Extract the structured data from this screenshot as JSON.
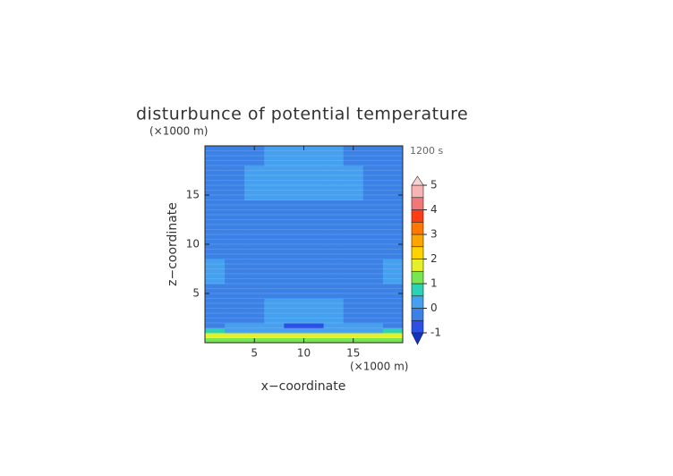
{
  "chart_data": {
    "type": "contour",
    "title": "disturbunce of potential temperature",
    "time_label": "1200 s",
    "xlabel": "x−coordinate",
    "ylabel": "z−coordinate",
    "x_unit": "(×1000 m)",
    "y_unit": "(×1000 m)",
    "xlim": [
      0,
      20
    ],
    "ylim": [
      0,
      20
    ],
    "xticks": [
      5,
      10,
      15
    ],
    "yticks": [
      5,
      10,
      15
    ],
    "x_bins": [
      0,
      2,
      4,
      6,
      8,
      10,
      12,
      14,
      16,
      18,
      20
    ],
    "z_bins": [
      0,
      0.5,
      1,
      1.5,
      2,
      2.5,
      4.5,
      6,
      8.5,
      14.5,
      18,
      20
    ],
    "values": [
      [
        1.2,
        1.2,
        1.2,
        1.2,
        1.2,
        1.2,
        1.2,
        1.2,
        1.2,
        1.2
      ],
      [
        1.7,
        1.7,
        1.7,
        1.7,
        1.7,
        1.7,
        1.7,
        1.7,
        1.7,
        1.7
      ],
      [
        0.6,
        0.3,
        0.3,
        0.3,
        0.3,
        0.3,
        0.3,
        0.3,
        0.3,
        0.6
      ],
      [
        -0.25,
        0.25,
        0.25,
        0.25,
        -0.7,
        -0.7,
        0.25,
        0.25,
        0.25,
        -0.25
      ],
      [
        -0.25,
        -0.25,
        -0.25,
        0.25,
        0.25,
        0.25,
        0.25,
        -0.25,
        -0.25,
        -0.25
      ],
      [
        -0.25,
        -0.25,
        -0.25,
        0.25,
        0.25,
        0.25,
        0.25,
        -0.25,
        -0.25,
        -0.25
      ],
      [
        -0.25,
        -0.25,
        -0.25,
        -0.25,
        -0.25,
        -0.25,
        -0.25,
        -0.25,
        -0.25,
        -0.25
      ],
      [
        0.25,
        -0.25,
        -0.25,
        -0.25,
        -0.25,
        -0.25,
        -0.25,
        -0.25,
        -0.25,
        0.25
      ],
      [
        -0.25,
        -0.25,
        -0.25,
        -0.25,
        -0.25,
        -0.25,
        -0.25,
        -0.25,
        -0.25,
        -0.25
      ],
      [
        -0.25,
        -0.25,
        0.25,
        0.25,
        0.25,
        0.25,
        0.25,
        0.25,
        -0.25,
        -0.25
      ],
      [
        -0.25,
        -0.25,
        -0.25,
        0.25,
        0.25,
        0.25,
        0.25,
        -0.25,
        -0.25,
        -0.25
      ]
    ],
    "levels": [
      -1,
      -0.5,
      0,
      0.5,
      1,
      1.5,
      2,
      2.5,
      3,
      3.5,
      4,
      4.5,
      5
    ],
    "level_colors": [
      "#2a50e6",
      "#3c82e6",
      "#46a0f0",
      "#2cd2b4",
      "#78e650",
      "#e6f028",
      "#ffd200",
      "#ffa500",
      "#ff7800",
      "#ff3c14",
      "#f07878",
      "#f8b4b4"
    ],
    "under_color": "#1432c8",
    "over_color": "#fad2d2",
    "colorbar_ticks": [
      -1,
      0,
      1,
      2,
      3,
      4,
      5
    ]
  }
}
